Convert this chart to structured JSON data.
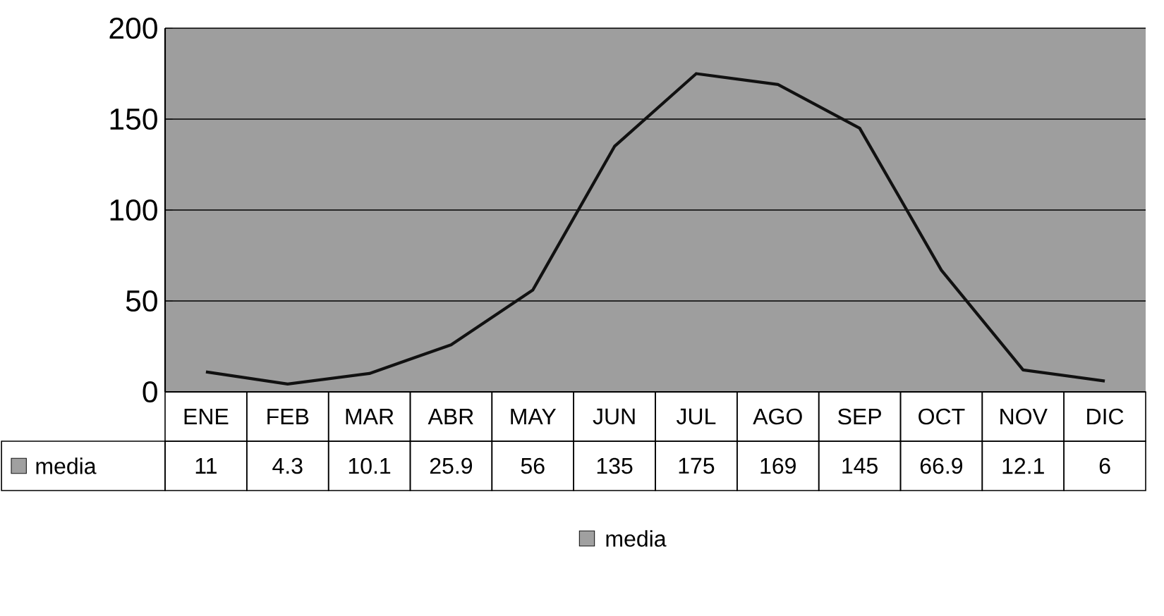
{
  "chart_data": {
    "type": "line",
    "categories": [
      "ENE",
      "FEB",
      "MAR",
      "ABR",
      "MAY",
      "JUN",
      "JUL",
      "AGO",
      "SEP",
      "OCT",
      "NOV",
      "DIC"
    ],
    "series": [
      {
        "name": "media",
        "color": "#111111",
        "values": [
          11,
          4.3,
          10.1,
          25.9,
          56,
          135,
          175,
          169,
          145,
          66.9,
          12.1,
          6
        ]
      }
    ],
    "ylim": [
      0,
      200
    ],
    "yticks": [
      0,
      50,
      100,
      150,
      200
    ],
    "grid": "y",
    "legend": "bottom",
    "data_labels": true,
    "marker": "none",
    "line_style": "solid"
  }
}
